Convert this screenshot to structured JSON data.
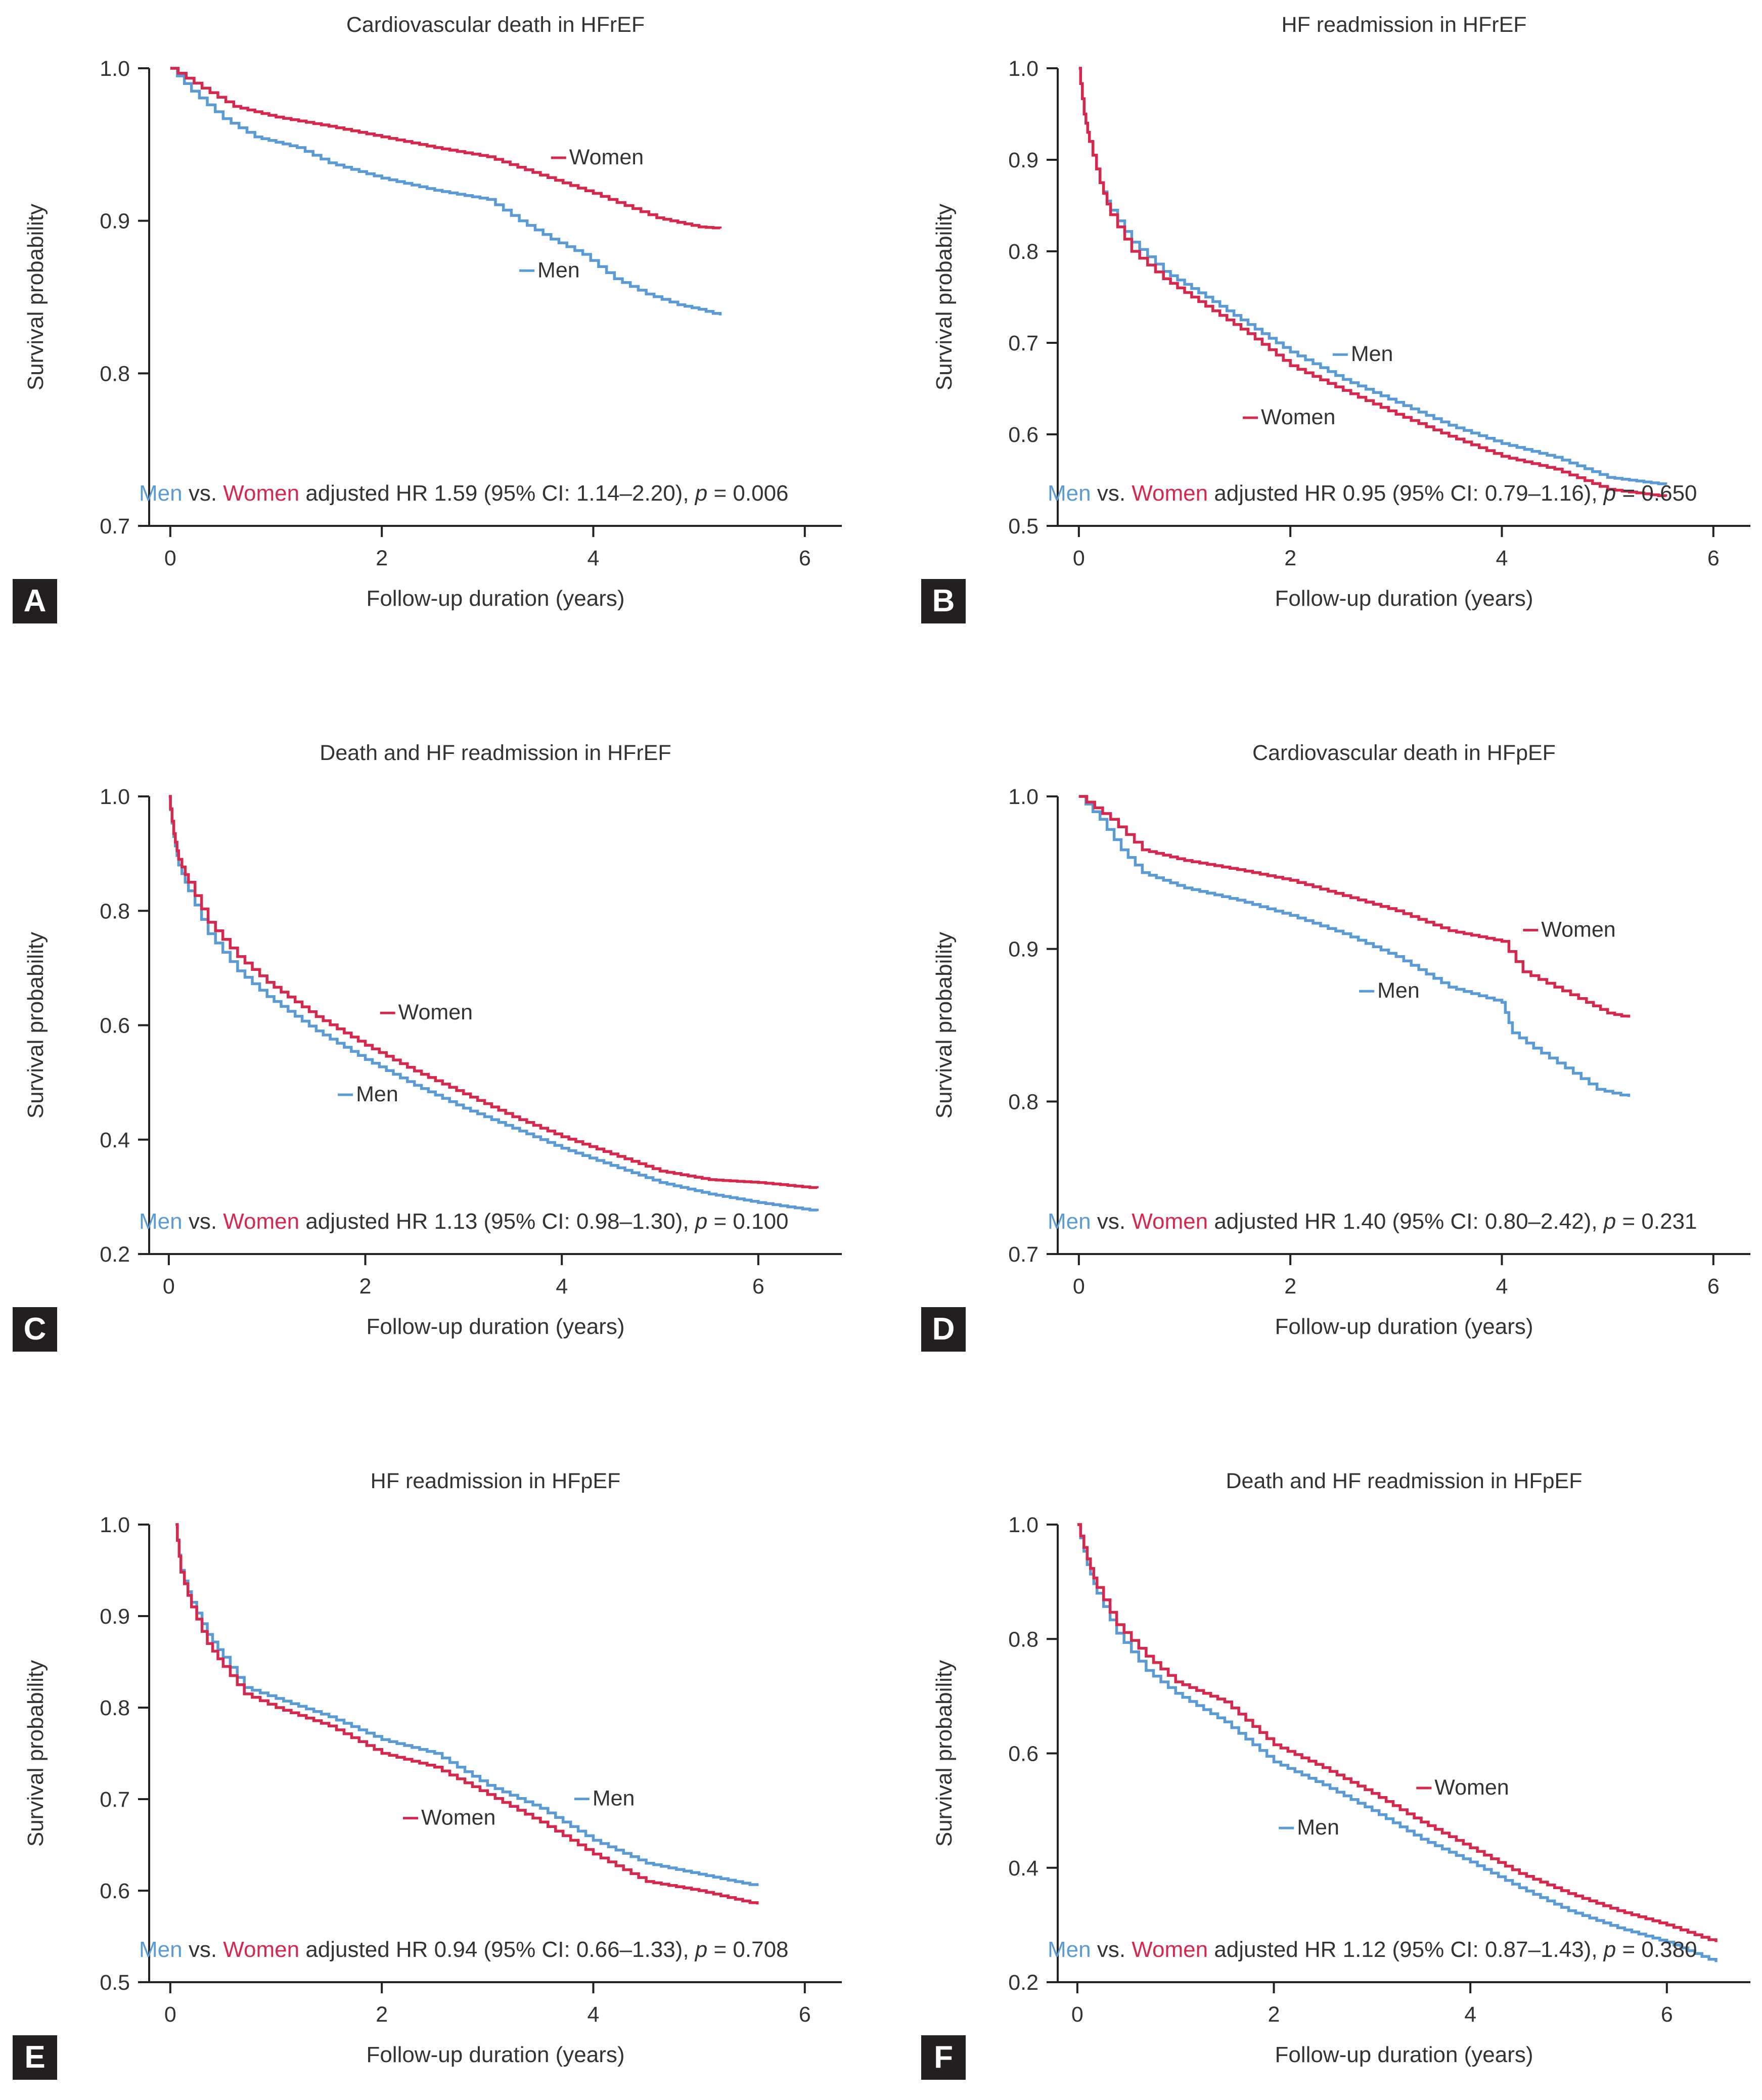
{
  "colors": {
    "men": "#5b9bd5",
    "women": "#d6284c",
    "axis": "#222222",
    "text": "#333333",
    "badge_bg": "#231f20",
    "badge_fg": "#ffffff"
  },
  "common": {
    "xlabel": "Follow-up duration (years)",
    "ylabel": "Survival probability",
    "men_label": "Men",
    "women_label": "Women",
    "vs_text": "vs.",
    "adjusted_text": "adjusted HR",
    "p_label": "p"
  },
  "chart_data": [
    {
      "panel": "A",
      "type": "line",
      "title": "Cardiovascular death in HFrEF",
      "xlim": [
        -0.2,
        6.35
      ],
      "ylim": [
        0.7,
        1.0
      ],
      "xticks": [
        "0",
        "2",
        "4",
        "6"
      ],
      "xtick_values": [
        0,
        2,
        4,
        6
      ],
      "yticks": [
        "0.7",
        "0.8",
        "0.9",
        "1.0"
      ],
      "ytick_values": [
        0.7,
        0.8,
        0.9,
        1.0
      ],
      "hr_text": "1.59 (95% CI: 1.14–2.20),",
      "p_text": "= 0.006",
      "series": [
        {
          "name": "Men",
          "x": [
            0,
            0.2,
            0.5,
            0.8,
            1.2,
            1.5,
            2.0,
            2.5,
            3.0,
            3.3,
            3.6,
            3.9,
            4.2,
            4.5,
            4.8,
            5.0,
            5.2
          ],
          "y": [
            1.0,
            0.985,
            0.967,
            0.955,
            0.948,
            0.938,
            0.928,
            0.92,
            0.914,
            0.9,
            0.888,
            0.878,
            0.862,
            0.852,
            0.845,
            0.842,
            0.838
          ]
        },
        {
          "name": "Women",
          "x": [
            0,
            0.3,
            0.6,
            1.0,
            1.5,
            2.0,
            2.5,
            3.0,
            3.5,
            4.0,
            4.3,
            4.6,
            5.0,
            5.2
          ],
          "y": [
            1.0,
            0.987,
            0.975,
            0.968,
            0.962,
            0.955,
            0.948,
            0.942,
            0.93,
            0.918,
            0.91,
            0.902,
            0.896,
            0.895
          ]
        }
      ],
      "labels": [
        {
          "name": "Women",
          "x": 3.6,
          "y": 0.937
        },
        {
          "name": "Men",
          "x": 3.3,
          "y": 0.863
        }
      ]
    },
    {
      "panel": "B",
      "type": "line",
      "title": "HF readmission in HFrEF",
      "xlim": [
        -0.2,
        6.35
      ],
      "ylim": [
        0.5,
        1.0
      ],
      "xticks": [
        "0",
        "2",
        "4",
        "6"
      ],
      "xtick_values": [
        0,
        2,
        4,
        6
      ],
      "yticks": [
        "0.5",
        "0.6",
        "0.7",
        "0.8",
        "0.9",
        "1.0"
      ],
      "ytick_values": [
        0.5,
        0.6,
        0.7,
        0.8,
        0.9,
        1.0
      ],
      "hr_text": "0.95 (95% CI: 0.79–1.16),",
      "p_text": "= 0.650",
      "series": [
        {
          "name": "Men",
          "x": [
            0,
            0.05,
            0.1,
            0.2,
            0.3,
            0.5,
            0.8,
            1.2,
            1.6,
            2.0,
            2.5,
            3.0,
            3.5,
            4.0,
            4.5,
            5.0,
            5.55
          ],
          "y": [
            1.0,
            0.95,
            0.92,
            0.875,
            0.845,
            0.81,
            0.778,
            0.75,
            0.72,
            0.69,
            0.66,
            0.635,
            0.61,
            0.59,
            0.575,
            0.553,
            0.545
          ]
        },
        {
          "name": "Women",
          "x": [
            0,
            0.05,
            0.1,
            0.2,
            0.3,
            0.5,
            0.8,
            1.2,
            1.6,
            2.0,
            2.5,
            3.0,
            3.5,
            4.0,
            4.5,
            5.0,
            5.55
          ],
          "y": [
            1.0,
            0.95,
            0.92,
            0.875,
            0.84,
            0.8,
            0.77,
            0.74,
            0.71,
            0.675,
            0.648,
            0.622,
            0.598,
            0.576,
            0.562,
            0.54,
            0.532
          ]
        }
      ],
      "labels": [
        {
          "name": "Men",
          "x": 2.4,
          "y": 0.68
        },
        {
          "name": "Women",
          "x": 1.55,
          "y": 0.611
        }
      ]
    },
    {
      "panel": "C",
      "type": "line",
      "title": "Death and HF readmission in HFrEF",
      "xlim": [
        -0.2,
        6.85
      ],
      "ylim": [
        0.2,
        1.0
      ],
      "xticks": [
        "0",
        "2",
        "4",
        "6"
      ],
      "xtick_values": [
        0,
        2,
        4,
        6
      ],
      "yticks": [
        "0.2",
        "0.4",
        "0.6",
        "0.8",
        "1.0"
      ],
      "ytick_values": [
        0.2,
        0.4,
        0.6,
        0.8,
        1.0
      ],
      "hr_text": "1.13 (95% CI: 0.98–1.30),",
      "p_text": "= 0.100",
      "series": [
        {
          "name": "Men",
          "x": [
            0,
            0.05,
            0.1,
            0.2,
            0.4,
            0.7,
            1.0,
            1.5,
            2.0,
            2.5,
            3.0,
            3.5,
            4.0,
            4.5,
            5.0,
            5.5,
            6.0,
            6.6
          ],
          "y": [
            1.0,
            0.93,
            0.88,
            0.835,
            0.76,
            0.695,
            0.65,
            0.59,
            0.54,
            0.495,
            0.455,
            0.42,
            0.385,
            0.355,
            0.325,
            0.305,
            0.29,
            0.275
          ]
        },
        {
          "name": "Women",
          "x": [
            0,
            0.05,
            0.1,
            0.2,
            0.4,
            0.7,
            1.0,
            1.5,
            2.0,
            2.5,
            3.0,
            3.5,
            4.0,
            4.5,
            5.0,
            5.5,
            6.0,
            6.6
          ],
          "y": [
            1.0,
            0.935,
            0.89,
            0.85,
            0.78,
            0.72,
            0.675,
            0.615,
            0.565,
            0.52,
            0.48,
            0.44,
            0.405,
            0.375,
            0.345,
            0.33,
            0.325,
            0.315
          ]
        }
      ],
      "labels": [
        {
          "name": "Women",
          "x": 2.15,
          "y": 0.61
        },
        {
          "name": "Men",
          "x": 1.72,
          "y": 0.467
        }
      ]
    },
    {
      "panel": "D",
      "type": "line",
      "title": "Cardiovascular death in HFpEF",
      "xlim": [
        -0.2,
        6.35
      ],
      "ylim": [
        0.7,
        1.0
      ],
      "xticks": [
        "0",
        "2",
        "4",
        "6"
      ],
      "xtick_values": [
        0,
        2,
        4,
        6
      ],
      "yticks": [
        "0.7",
        "0.8",
        "0.9",
        "1.0"
      ],
      "ytick_values": [
        0.7,
        0.8,
        0.9,
        1.0
      ],
      "hr_text": "1.40 (95% CI: 0.80–2.42),",
      "p_text": "= 0.231",
      "series": [
        {
          "name": "Men",
          "x": [
            0,
            0.2,
            0.4,
            0.6,
            1.0,
            1.5,
            2.0,
            2.5,
            3.0,
            3.5,
            4.0,
            4.1,
            4.3,
            4.6,
            4.9,
            5.2
          ],
          "y": [
            1.0,
            0.985,
            0.965,
            0.95,
            0.94,
            0.932,
            0.922,
            0.91,
            0.895,
            0.875,
            0.865,
            0.845,
            0.835,
            0.822,
            0.808,
            0.803
          ]
        },
        {
          "name": "Women",
          "x": [
            0,
            0.3,
            0.6,
            1.0,
            1.5,
            2.0,
            2.5,
            3.0,
            3.5,
            4.0,
            4.2,
            4.5,
            4.8,
            5.0,
            5.2
          ],
          "y": [
            1.0,
            0.985,
            0.965,
            0.958,
            0.952,
            0.945,
            0.935,
            0.925,
            0.912,
            0.905,
            0.885,
            0.875,
            0.865,
            0.858,
            0.855
          ]
        }
      ],
      "labels": [
        {
          "name": "Women",
          "x": 4.2,
          "y": 0.908
        },
        {
          "name": "Men",
          "x": 2.65,
          "y": 0.868
        }
      ]
    },
    {
      "panel": "E",
      "type": "line",
      "title": "HF readmission in HFpEF",
      "xlim": [
        -0.2,
        6.35
      ],
      "ylim": [
        0.5,
        1.0
      ],
      "xticks": [
        "0",
        "2",
        "4",
        "6"
      ],
      "xtick_values": [
        0,
        2,
        4,
        6
      ],
      "yticks": [
        "0.5",
        "0.6",
        "0.7",
        "0.8",
        "0.9",
        "1.0"
      ],
      "ytick_values": [
        0.5,
        0.6,
        0.7,
        0.8,
        0.9,
        1.0
      ],
      "hr_text": "0.94 (95% CI: 0.66–1.33),",
      "p_text": "= 0.708",
      "series": [
        {
          "name": "Men",
          "x": [
            0.05,
            0.1,
            0.2,
            0.35,
            0.5,
            0.7,
            1.0,
            1.5,
            2.0,
            2.5,
            3.0,
            3.5,
            4.0,
            4.5,
            5.0,
            5.55
          ],
          "y": [
            1.0,
            0.95,
            0.915,
            0.88,
            0.855,
            0.822,
            0.81,
            0.79,
            0.765,
            0.75,
            0.715,
            0.69,
            0.655,
            0.63,
            0.618,
            0.605
          ]
        },
        {
          "name": "Women",
          "x": [
            0.05,
            0.1,
            0.2,
            0.35,
            0.5,
            0.7,
            1.0,
            1.5,
            2.0,
            2.5,
            3.0,
            3.5,
            4.0,
            4.5,
            5.0,
            5.55
          ],
          "y": [
            1.0,
            0.948,
            0.91,
            0.87,
            0.845,
            0.815,
            0.8,
            0.78,
            0.75,
            0.735,
            0.705,
            0.675,
            0.64,
            0.61,
            0.6,
            0.585
          ]
        }
      ],
      "labels": [
        {
          "name": "Men",
          "x": 3.82,
          "y": 0.693
        },
        {
          "name": "Women",
          "x": 2.2,
          "y": 0.672
        }
      ]
    },
    {
      "panel": "F",
      "type": "line",
      "title": "Death and HF readmission in HFpEF",
      "xlim": [
        -0.2,
        6.85
      ],
      "ylim": [
        0.2,
        1.0
      ],
      "xticks": [
        "0",
        "2",
        "4",
        "6"
      ],
      "xtick_values": [
        0,
        2,
        4,
        6
      ],
      "yticks": [
        "0.2",
        "0.4",
        "0.6",
        "0.8",
        "1.0"
      ],
      "ytick_values": [
        0.2,
        0.4,
        0.6,
        0.8,
        1.0
      ],
      "hr_text": "1.12 (95% CI: 0.87–1.43),",
      "p_text": "= 0.380",
      "series": [
        {
          "name": "Men",
          "x": [
            0,
            0.1,
            0.2,
            0.4,
            0.7,
            1.0,
            1.5,
            2.0,
            2.5,
            3.0,
            3.5,
            4.0,
            4.5,
            5.0,
            5.5,
            6.0,
            6.5
          ],
          "y": [
            1.0,
            0.93,
            0.88,
            0.81,
            0.745,
            0.705,
            0.655,
            0.585,
            0.545,
            0.5,
            0.45,
            0.41,
            0.365,
            0.325,
            0.295,
            0.27,
            0.235
          ]
        },
        {
          "name": "Women",
          "x": [
            0,
            0.1,
            0.2,
            0.4,
            0.7,
            1.0,
            1.5,
            2.0,
            2.5,
            3.0,
            3.5,
            4.0,
            4.5,
            5.0,
            5.5,
            6.0,
            6.5
          ],
          "y": [
            1.0,
            0.94,
            0.89,
            0.825,
            0.77,
            0.725,
            0.69,
            0.615,
            0.575,
            0.53,
            0.48,
            0.435,
            0.39,
            0.355,
            0.325,
            0.3,
            0.27
          ]
        }
      ],
      "labels": [
        {
          "name": "Women",
          "x": 3.45,
          "y": 0.528
        },
        {
          "name": "Men",
          "x": 2.05,
          "y": 0.458
        }
      ]
    }
  ]
}
